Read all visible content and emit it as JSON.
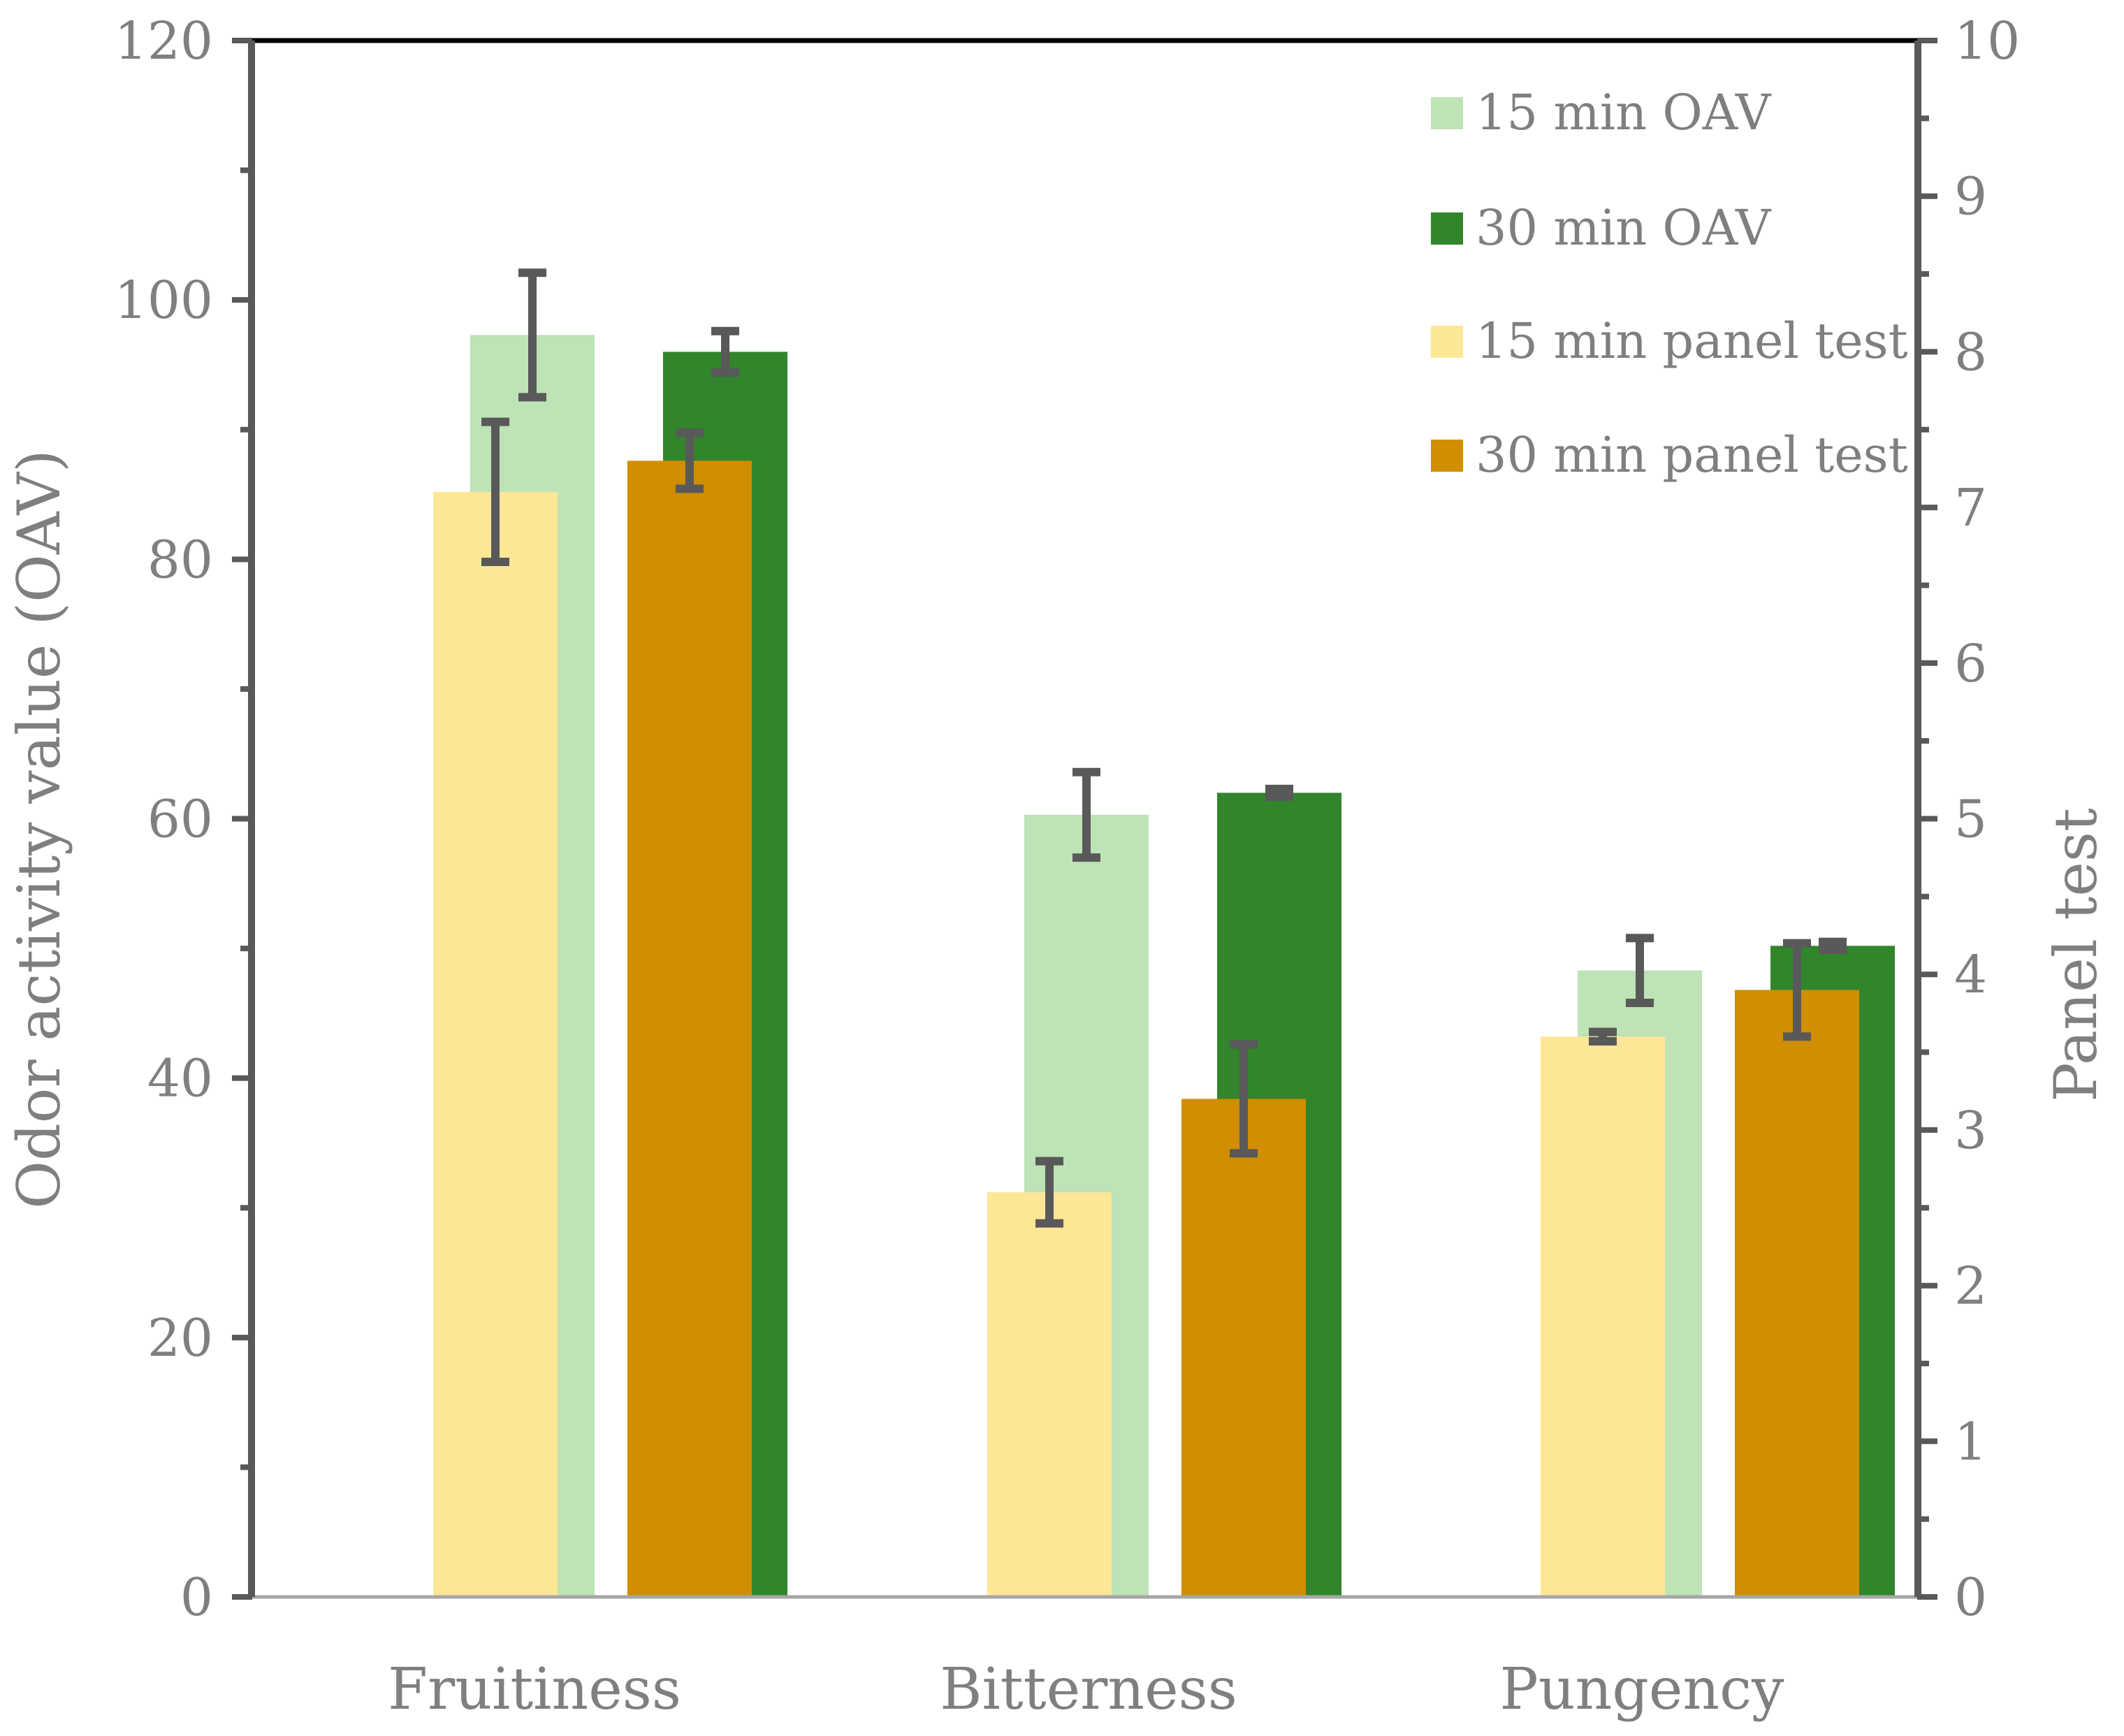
{
  "chart_data": {
    "type": "bar",
    "categories": [
      "Fruitiness",
      "Bitterness",
      "Pungency"
    ],
    "y_left": {
      "label": "Odor activity value (OAV)",
      "min": 0,
      "max": 120,
      "ticks": [
        0,
        20,
        40,
        60,
        80,
        100,
        120
      ]
    },
    "y_right": {
      "label": "Panel test",
      "min": 0,
      "max": 10,
      "ticks": [
        0,
        1,
        2,
        3,
        4,
        5,
        6,
        7,
        8,
        9,
        10
      ]
    },
    "series": [
      {
        "name": "15 min OAV",
        "axis": "left",
        "color": "#bde3b6",
        "values": [
          97.3,
          60.3,
          48.3
        ],
        "errors": [
          4.8,
          3.3,
          2.5
        ]
      },
      {
        "name": "30 min OAV",
        "axis": "left",
        "color": "#31852b",
        "values": [
          96.0,
          62.0,
          50.2
        ],
        "errors": [
          1.6,
          0.3,
          0.3
        ]
      },
      {
        "name": "15 min panel test",
        "axis": "right",
        "color": "#fee697",
        "values": [
          7.1,
          2.6,
          3.6
        ],
        "errors": [
          0.45,
          0.2,
          0.03
        ]
      },
      {
        "name": "30 min panel test",
        "axis": "right",
        "color": "#d08e00",
        "values": [
          7.3,
          3.2,
          3.9
        ],
        "errors": [
          0.18,
          0.35,
          0.3
        ]
      }
    ],
    "legend": "top-right"
  }
}
